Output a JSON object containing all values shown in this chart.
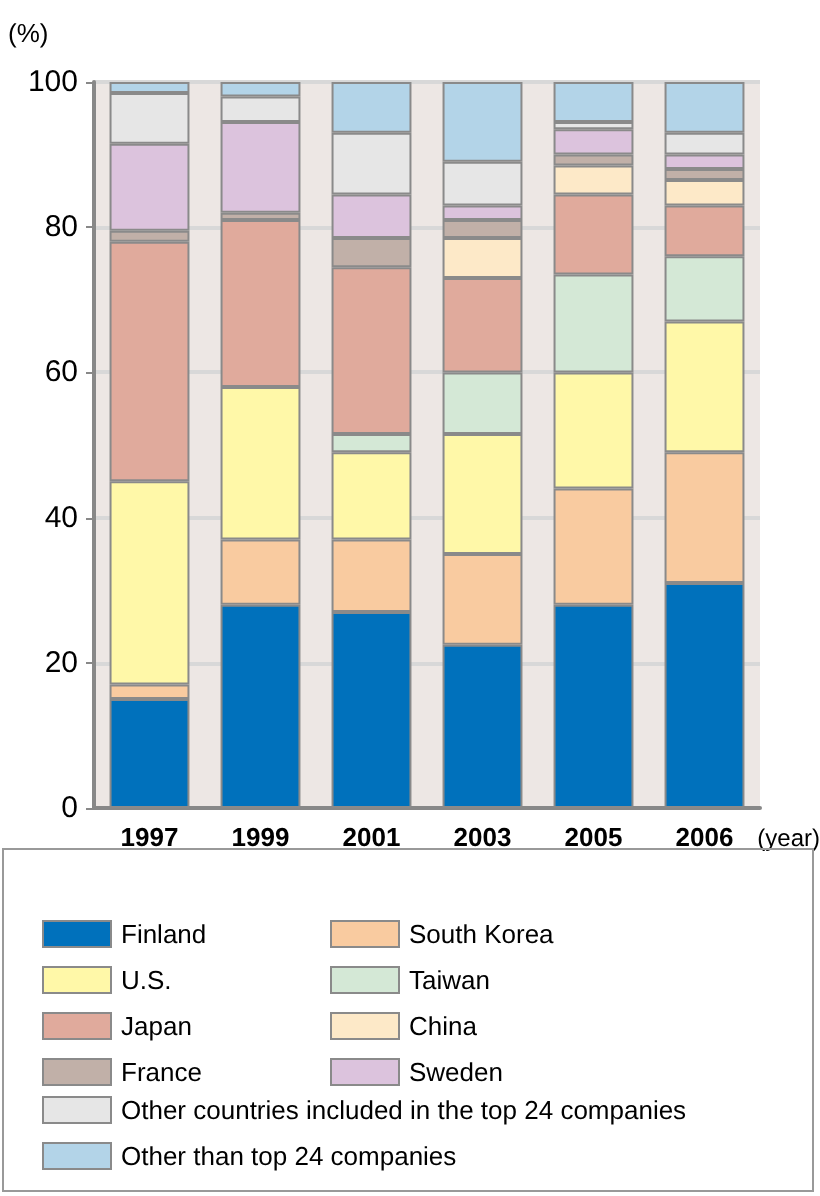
{
  "chart_data": {
    "type": "bar",
    "stacked": true,
    "ylabel": "(%)",
    "xlabel": "(year)",
    "categories": [
      "1997",
      "1999",
      "2001",
      "2003",
      "2005",
      "2006"
    ],
    "ylim": [
      0,
      100
    ],
    "yticks": [
      0,
      20,
      40,
      60,
      80,
      100
    ],
    "grid": "y",
    "legend": "bottom",
    "series": [
      {
        "name": "Finland",
        "color": "#0071bc",
        "values": [
          15,
          28,
          27,
          22.5,
          28,
          31
        ]
      },
      {
        "name": "South Korea",
        "color": "#f9cba0",
        "values": [
          2,
          9,
          10,
          12.5,
          16,
          18
        ]
      },
      {
        "name": "U.S.",
        "color": "#fff8a8",
        "values": [
          28,
          21,
          12,
          16.5,
          16,
          18
        ]
      },
      {
        "name": "Taiwan",
        "color": "#d4e8d6",
        "values": [
          0,
          0,
          2.5,
          8.5,
          13.5,
          9
        ]
      },
      {
        "name": "Japan",
        "color": "#e0aa9c",
        "values": [
          33,
          23,
          23,
          13,
          11,
          7
        ]
      },
      {
        "name": "China",
        "color": "#fde9c8",
        "values": [
          0,
          0,
          0,
          5.5,
          4,
          3.5
        ]
      },
      {
        "name": "France",
        "color": "#c1b0a8",
        "values": [
          1.5,
          1,
          4,
          2.5,
          1.5,
          1.5
        ]
      },
      {
        "name": "Sweden",
        "color": "#dcc3dd",
        "values": [
          12,
          12.5,
          6,
          2,
          3.5,
          2
        ]
      },
      {
        "name": "Other countries included in the top 24 companies",
        "color": "#e6e6e6",
        "values": [
          7,
          3.5,
          8.5,
          6,
          1,
          3
        ]
      },
      {
        "name": "Other than top 24 companies",
        "color": "#b3d4e8",
        "values": [
          1.5,
          2,
          7,
          11,
          5.5,
          7
        ]
      }
    ]
  }
}
